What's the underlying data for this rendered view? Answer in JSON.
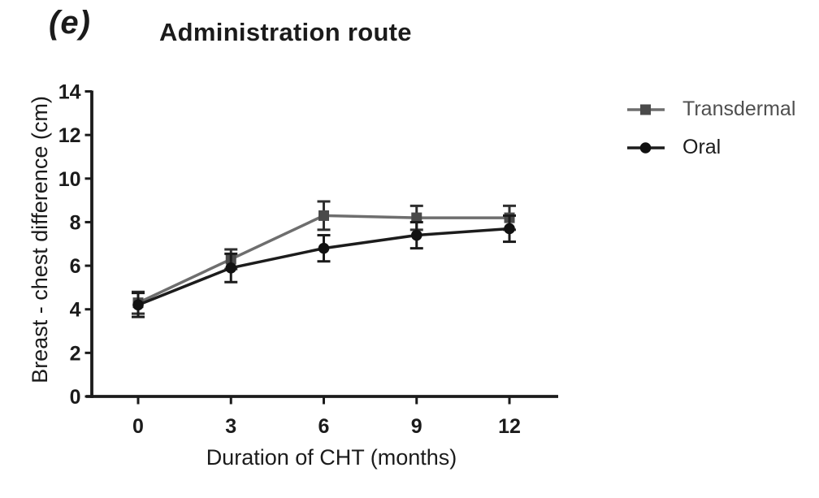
{
  "figure_label": "(e)",
  "title": "Administration route",
  "colors": {
    "axis": "#1b1b1b",
    "text": "#1b1b1b",
    "background": "#ffffff",
    "transdermal_line": "#6e6e6e",
    "transdermal_marker": "#4a4a4a",
    "transdermal_error": "#2f2f2f",
    "oral_line": "#1c1c1c",
    "oral_marker": "#111111",
    "oral_error": "#1b1b1b"
  },
  "legend": [
    {
      "label": "Transdermal",
      "marker": "square",
      "line_color": "#6e6e6e",
      "marker_color": "#4a4a4a",
      "label_color": "#4f4f4f"
    },
    {
      "label": "Oral",
      "marker": "circle",
      "line_color": "#1c1c1c",
      "marker_color": "#111111",
      "label_color": "#1b1b1b"
    }
  ],
  "chart_data": {
    "type": "line",
    "title": "Administration route",
    "x": [
      0,
      3,
      6,
      9,
      12
    ],
    "xticks": [
      0,
      3,
      6,
      9,
      12
    ],
    "yticks": [
      0,
      2,
      4,
      6,
      8,
      10,
      12,
      14
    ],
    "xlabel": "Duration of CHT (months)",
    "ylabel": "Breast - chest difference (cm)",
    "xlim": [
      0,
      13.5
    ],
    "ylim": [
      0,
      14
    ],
    "grid": false,
    "legend_position": "right",
    "series": [
      {
        "name": "Transdermal",
        "marker": "square",
        "color": "#6e6e6e",
        "marker_color": "#4a4a4a",
        "error_color": "#2f2f2f",
        "values": [
          4.3,
          6.3,
          8.3,
          8.2,
          8.2
        ],
        "errors": [
          0.5,
          0.45,
          0.65,
          0.55,
          0.55
        ]
      },
      {
        "name": "Oral",
        "marker": "circle",
        "color": "#1c1c1c",
        "marker_color": "#111111",
        "error_color": "#1b1b1b",
        "values": [
          4.2,
          5.9,
          6.8,
          7.4,
          7.7
        ],
        "errors": [
          0.55,
          0.65,
          0.6,
          0.6,
          0.6
        ]
      }
    ]
  }
}
